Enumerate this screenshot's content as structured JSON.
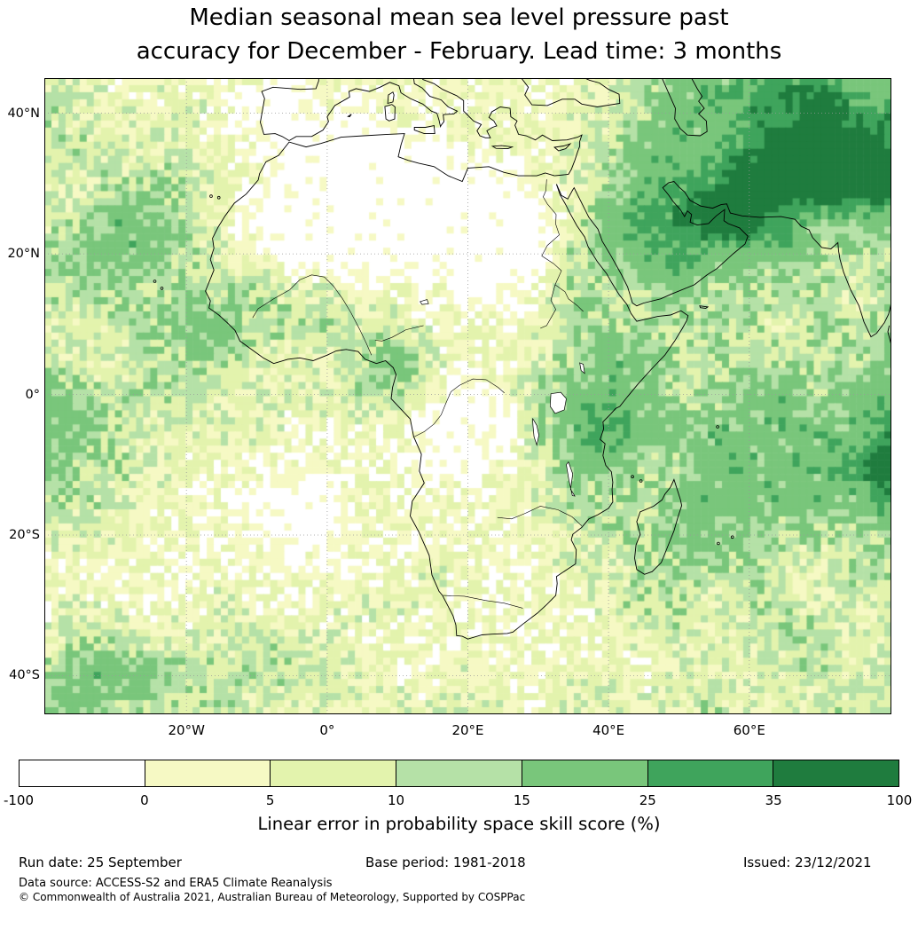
{
  "title": {
    "line1": "Median seasonal mean sea level pressure past",
    "line2": "accuracy for December - February. Lead time: 3 months"
  },
  "map": {
    "lat_ticks": [
      {
        "label": "40°N",
        "value": 40
      },
      {
        "label": "20°N",
        "value": 20
      },
      {
        "label": "0°",
        "value": 0
      },
      {
        "label": "20°S",
        "value": -20
      },
      {
        "label": "40°S",
        "value": -40
      }
    ],
    "lon_ticks": [
      {
        "label": "20°W",
        "value": -20
      },
      {
        "label": "0°",
        "value": 0
      },
      {
        "label": "20°E",
        "value": 20
      },
      {
        "label": "40°E",
        "value": 40
      },
      {
        "label": "60°E",
        "value": 60
      }
    ]
  },
  "colorbar": {
    "label": "Linear error in probability space skill score (%)",
    "tick_labels": [
      "-100",
      "0",
      "5",
      "10",
      "15",
      "25",
      "35",
      "100"
    ],
    "colors": [
      "#ffffff",
      "#f6f9c4",
      "#e3f3ad",
      "#b5e1a7",
      "#79c67b",
      "#3fa45c",
      "#1f7c3e"
    ]
  },
  "footer": {
    "run_date": "Run date: 25 September",
    "base_period": "Base period: 1981-2018",
    "issued": "Issued: 23/12/2021",
    "data_source": "Data source: ACCESS-S2 and ERA5 Climate Reanalysis",
    "copyright": "© Commonwealth of Australia 2021, Australian Bureau of Meteorology, Supported by COSPPac"
  },
  "chart_data": {
    "type": "heatmap",
    "title": "Median seasonal mean sea level pressure past accuracy for December - February. Lead time: 3 months",
    "variable": "Linear error in probability space skill score (%)",
    "season": "December - February",
    "lead_time_months": 3,
    "levels": [
      -100,
      0,
      5,
      10,
      15,
      25,
      35,
      100
    ],
    "level_colors": [
      "#ffffff",
      "#f6f9c4",
      "#e3f3ad",
      "#b5e1a7",
      "#79c67b",
      "#3fa45c",
      "#1f7c3e"
    ],
    "lon_min": -40.2,
    "lon_max": 80.2,
    "lat_min": -45.5,
    "lat_max": 45.0,
    "grid_step_deg": 5,
    "grid_lons": [
      -40,
      -35,
      -30,
      -25,
      -20,
      -15,
      -10,
      -5,
      0,
      5,
      10,
      15,
      20,
      25,
      30,
      35,
      40,
      45,
      50,
      55,
      60,
      65,
      70,
      75,
      80
    ],
    "grid_lats": [
      45,
      40,
      35,
      30,
      25,
      20,
      15,
      10,
      5,
      0,
      -5,
      -10,
      -15,
      -20,
      -25,
      -30,
      -35,
      -40,
      -45
    ],
    "values": [
      [
        7,
        7,
        3,
        7,
        3,
        3,
        3,
        -5,
        3,
        3,
        3,
        3,
        3,
        7,
        3,
        3,
        7,
        12,
        20,
        20,
        20,
        30,
        30,
        20,
        20
      ],
      [
        12,
        7,
        7,
        3,
        7,
        3,
        -5,
        -5,
        3,
        -5,
        3,
        3,
        3,
        3,
        3,
        7,
        7,
        12,
        20,
        20,
        30,
        30,
        50,
        30,
        30
      ],
      [
        7,
        12,
        7,
        7,
        7,
        3,
        3,
        -5,
        -5,
        -5,
        -5,
        -5,
        3,
        3,
        3,
        7,
        12,
        20,
        20,
        20,
        30,
        50,
        50,
        50,
        30
      ],
      [
        7,
        7,
        12,
        12,
        12,
        7,
        3,
        -5,
        -5,
        -5,
        -5,
        -5,
        -5,
        -5,
        3,
        7,
        12,
        20,
        30,
        30,
        50,
        50,
        50,
        50,
        50
      ],
      [
        7,
        12,
        20,
        20,
        12,
        3,
        -5,
        -5,
        -5,
        -5,
        -5,
        -5,
        -5,
        -5,
        -5,
        7,
        20,
        30,
        30,
        50,
        50,
        30,
        20,
        20,
        20
      ],
      [
        12,
        20,
        20,
        20,
        12,
        7,
        3,
        -5,
        -5,
        -5,
        -5,
        -5,
        -5,
        -5,
        -5,
        12,
        20,
        20,
        30,
        20,
        20,
        20,
        12,
        12,
        12
      ],
      [
        12,
        12,
        12,
        12,
        12,
        12,
        12,
        7,
        7,
        3,
        3,
        3,
        -5,
        -5,
        3,
        12,
        12,
        12,
        20,
        12,
        12,
        12,
        12,
        7,
        12
      ],
      [
        7,
        7,
        12,
        12,
        20,
        20,
        12,
        12,
        12,
        7,
        7,
        3,
        3,
        3,
        7,
        12,
        12,
        12,
        12,
        12,
        12,
        7,
        12,
        12,
        12
      ],
      [
        12,
        7,
        7,
        12,
        12,
        12,
        7,
        7,
        7,
        12,
        22,
        7,
        3,
        3,
        7,
        12,
        20,
        20,
        12,
        12,
        12,
        12,
        12,
        12,
        20
      ],
      [
        20,
        12,
        12,
        12,
        12,
        7,
        7,
        7,
        7,
        12,
        12,
        3,
        -5,
        3,
        12,
        20,
        20,
        20,
        12,
        12,
        20,
        20,
        12,
        20,
        20
      ],
      [
        20,
        20,
        12,
        7,
        7,
        7,
        7,
        3,
        3,
        3,
        3,
        -5,
        -5,
        -5,
        12,
        20,
        30,
        20,
        20,
        20,
        20,
        20,
        20,
        20,
        30
      ],
      [
        20,
        12,
        12,
        7,
        3,
        3,
        3,
        3,
        3,
        3,
        3,
        -5,
        -5,
        3,
        7,
        20,
        20,
        12,
        12,
        20,
        20,
        20,
        20,
        30,
        50
      ],
      [
        12,
        12,
        7,
        7,
        3,
        3,
        -5,
        -5,
        -5,
        3,
        3,
        3,
        3,
        3,
        7,
        12,
        12,
        12,
        20,
        20,
        20,
        20,
        20,
        20,
        30
      ],
      [
        7,
        7,
        7,
        3,
        3,
        3,
        3,
        -5,
        -5,
        3,
        3,
        3,
        3,
        3,
        3,
        7,
        12,
        12,
        20,
        20,
        12,
        12,
        12,
        12,
        12
      ],
      [
        3,
        3,
        3,
        3,
        3,
        3,
        3,
        3,
        3,
        3,
        3,
        7,
        3,
        3,
        3,
        7,
        7,
        12,
        12,
        12,
        12,
        7,
        7,
        12,
        12
      ],
      [
        3,
        7,
        3,
        3,
        3,
        7,
        3,
        3,
        3,
        7,
        7,
        3,
        3,
        3,
        3,
        3,
        7,
        12,
        12,
        7,
        12,
        12,
        7,
        7,
        7
      ],
      [
        7,
        12,
        12,
        7,
        7,
        7,
        12,
        7,
        7,
        3,
        3,
        3,
        3,
        3,
        3,
        3,
        3,
        7,
        7,
        7,
        7,
        12,
        12,
        7,
        7
      ],
      [
        12,
        20,
        20,
        20,
        12,
        12,
        12,
        12,
        7,
        7,
        3,
        3,
        7,
        3,
        3,
        7,
        7,
        3,
        7,
        7,
        7,
        7,
        12,
        7,
        7
      ],
      [
        12,
        20,
        12,
        12,
        12,
        12,
        7,
        7,
        7,
        7,
        7,
        7,
        7,
        7,
        3,
        7,
        7,
        7,
        7,
        12,
        7,
        7,
        7,
        12,
        7
      ]
    ]
  }
}
